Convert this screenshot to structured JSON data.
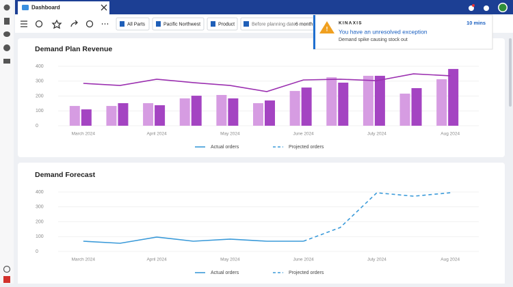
{
  "tab": {
    "title": "Dashboard"
  },
  "toolbar": {
    "filters": [
      "All Parts",
      "Pacific Northwest",
      "Product"
    ],
    "planning": {
      "label": "Before planning date",
      "value": "6 month,"
    }
  },
  "notification": {
    "brand": "KINAXIS",
    "title": "You have an unresolved exception",
    "message": "Demand spike causing stock out",
    "time": "10 mins"
  },
  "chart_data": [
    {
      "type": "bar",
      "title": "Demand Plan Revenue",
      "categories": [
        "March 2024",
        null,
        "April 2024",
        null,
        "May 2024",
        null,
        "June 2024",
        null,
        "July 2024",
        null,
        "Aug 2024"
      ],
      "ylim": [
        0,
        400
      ],
      "yticks": [
        0,
        100,
        200,
        300,
        400
      ],
      "grid": true,
      "series": [
        {
          "type": "bar",
          "color": "#d69ce2",
          "values": [
            133,
            133,
            152,
            184,
            207,
            152,
            234,
            326,
            336,
            216,
            313
          ]
        },
        {
          "type": "bar",
          "color": "#a444c2",
          "values": [
            110,
            152,
            138,
            202,
            184,
            170,
            257,
            290,
            336,
            253,
            382
          ]
        },
        {
          "type": "line",
          "color": "#9b30b0",
          "values": [
            285,
            271,
            313,
            290,
            271,
            230,
            308,
            313,
            303,
            349,
            336
          ]
        }
      ],
      "legend": [
        {
          "name": "Actual orders",
          "color": "#3a9ad9",
          "dash": false
        },
        {
          "name": "Projected orders",
          "color": "#3a9ad9",
          "dash": true
        }
      ]
    },
    {
      "type": "line",
      "title": "Demand Forecast",
      "categories": [
        "March 2024",
        null,
        "April 2024",
        null,
        "May 2024",
        null,
        "June 2024",
        null,
        "July 2024",
        null,
        "Aug 2024"
      ],
      "ylim": [
        0,
        400
      ],
      "yticks": [
        0,
        100,
        200,
        300,
        400
      ],
      "grid": true,
      "series": [
        {
          "name": "Actual orders",
          "color": "#3a9ad9",
          "dash": false,
          "values": [
            69,
            55,
            97,
            69,
            83,
            69,
            69,
            null,
            null,
            null,
            null
          ]
        },
        {
          "name": "Projected orders",
          "color": "#3a9ad9",
          "dash": true,
          "values": [
            null,
            null,
            null,
            null,
            null,
            null,
            69,
            161,
            395,
            372,
            395
          ]
        }
      ]
    }
  ]
}
